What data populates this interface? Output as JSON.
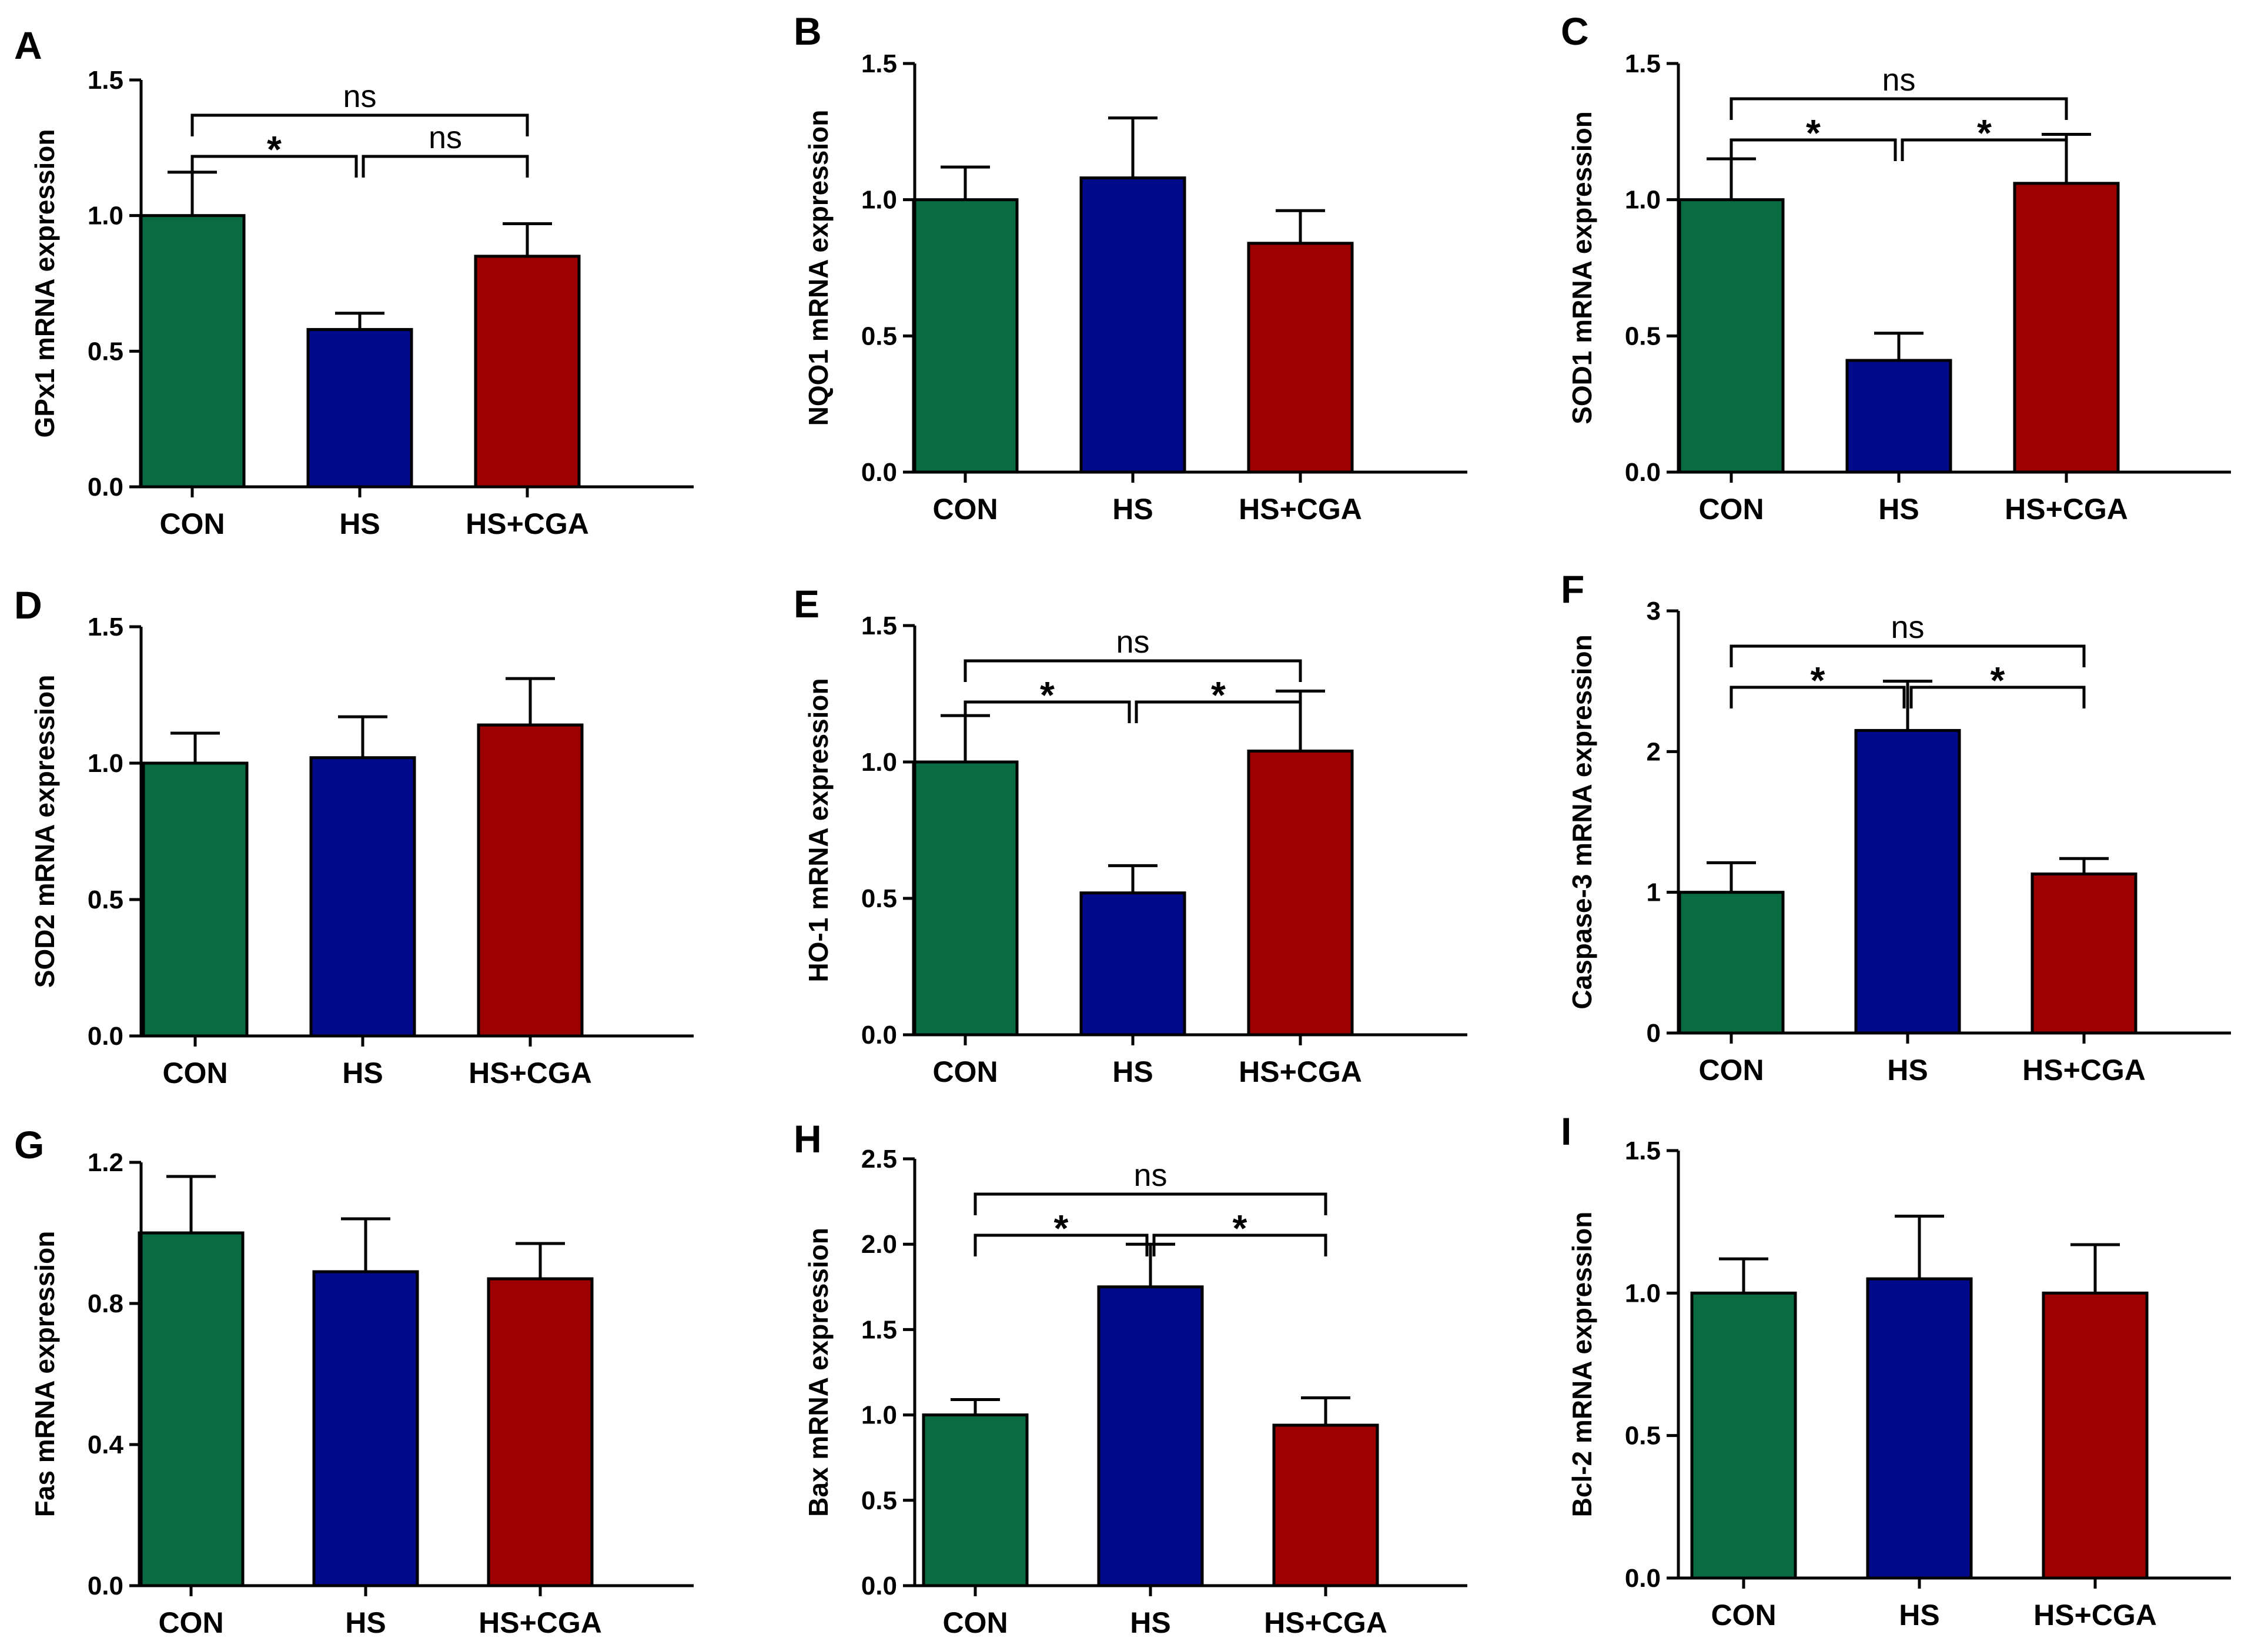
{
  "colors": {
    "CON": "#0a6b43",
    "HS": "#020a8c",
    "HS+CGA": "#9c0000"
  },
  "chart_data": [
    {
      "type": "bar",
      "panel": "A",
      "ylabel": "GPx1 mRNA expression",
      "categories": [
        "CON",
        "HS",
        "HS+CGA"
      ],
      "values": [
        1.0,
        0.58,
        0.85
      ],
      "errors": [
        0.16,
        0.06,
        0.12
      ],
      "ylim": [
        0,
        1.5
      ],
      "yticks": [
        "0.0",
        "0.5",
        "1.0",
        "1.5"
      ],
      "comparisons": [
        {
          "from": 0,
          "to": 1,
          "label": "*",
          "level": 1
        },
        {
          "from": 1,
          "to": 2,
          "label": "ns",
          "level": 1
        },
        {
          "from": 0,
          "to": 2,
          "label": "ns",
          "level": 2
        }
      ]
    },
    {
      "type": "bar",
      "panel": "B",
      "ylabel": "NQO1 mRNA expression",
      "categories": [
        "CON",
        "HS",
        "HS+CGA"
      ],
      "values": [
        1.0,
        1.08,
        0.84
      ],
      "errors": [
        0.12,
        0.22,
        0.12
      ],
      "ylim": [
        0,
        1.5
      ],
      "yticks": [
        "0.0",
        "0.5",
        "1.0",
        "1.5"
      ],
      "comparisons": []
    },
    {
      "type": "bar",
      "panel": "C",
      "ylabel": "SOD1 mRNA expression",
      "categories": [
        "CON",
        "HS",
        "HS+CGA"
      ],
      "values": [
        1.0,
        0.41,
        1.06
      ],
      "errors": [
        0.15,
        0.1,
        0.18
      ],
      "ylim": [
        0,
        1.5
      ],
      "yticks": [
        "0.0",
        "0.5",
        "1.0",
        "1.5"
      ],
      "comparisons": [
        {
          "from": 0,
          "to": 1,
          "label": "*",
          "level": 1
        },
        {
          "from": 1,
          "to": 2,
          "label": "*",
          "level": 1
        },
        {
          "from": 0,
          "to": 2,
          "label": "ns",
          "level": 2
        }
      ]
    },
    {
      "type": "bar",
      "panel": "D",
      "ylabel": "SOD2 mRNA expression",
      "categories": [
        "CON",
        "HS",
        "HS+CGA"
      ],
      "values": [
        1.0,
        1.02,
        1.14
      ],
      "errors": [
        0.11,
        0.15,
        0.17
      ],
      "ylim": [
        0,
        1.5
      ],
      "yticks": [
        "0.0",
        "0.5",
        "1.0",
        "1.5"
      ],
      "comparisons": []
    },
    {
      "type": "bar",
      "panel": "E",
      "ylabel": "HO-1 mRNA expression",
      "categories": [
        "CON",
        "HS",
        "HS+CGA"
      ],
      "values": [
        1.0,
        0.52,
        1.04
      ],
      "errors": [
        0.17,
        0.1,
        0.22
      ],
      "ylim": [
        0,
        1.5
      ],
      "yticks": [
        "0.0",
        "0.5",
        "1.0",
        "1.5"
      ],
      "comparisons": [
        {
          "from": 0,
          "to": 1,
          "label": "*",
          "level": 1
        },
        {
          "from": 1,
          "to": 2,
          "label": "*",
          "level": 1
        },
        {
          "from": 0,
          "to": 2,
          "label": "ns",
          "level": 2
        }
      ]
    },
    {
      "type": "bar",
      "panel": "F",
      "ylabel": "Caspase-3 mRNA expression",
      "categories": [
        "CON",
        "HS",
        "HS+CGA"
      ],
      "values": [
        1.0,
        2.15,
        1.13
      ],
      "errors": [
        0.21,
        0.35,
        0.11
      ],
      "ylim": [
        0,
        3
      ],
      "yticks": [
        "0",
        "1",
        "2",
        "3"
      ],
      "comparisons": [
        {
          "from": 0,
          "to": 1,
          "label": "*",
          "level": 1
        },
        {
          "from": 1,
          "to": 2,
          "label": "*",
          "level": 1
        },
        {
          "from": 0,
          "to": 2,
          "label": "ns",
          "level": 2
        }
      ]
    },
    {
      "type": "bar",
      "panel": "G",
      "ylabel": "Fas mRNA expression",
      "categories": [
        "CON",
        "HS",
        "HS+CGA"
      ],
      "values": [
        1.0,
        0.89,
        0.87
      ],
      "errors": [
        0.16,
        0.15,
        0.1
      ],
      "ylim": [
        0,
        1.2
      ],
      "yticks": [
        "0.0",
        "0.4",
        "0.8",
        "1.2"
      ],
      "comparisons": []
    },
    {
      "type": "bar",
      "panel": "H",
      "ylabel": "Bax mRNA expression",
      "categories": [
        "CON",
        "HS",
        "HS+CGA"
      ],
      "values": [
        1.0,
        1.75,
        0.94
      ],
      "errors": [
        0.09,
        0.25,
        0.16
      ],
      "ylim": [
        0,
        2.5
      ],
      "yticks": [
        "0.0",
        "0.5",
        "1.0",
        "1.5",
        "2.0",
        "2.5"
      ],
      "comparisons": [
        {
          "from": 0,
          "to": 1,
          "label": "*",
          "level": 1
        },
        {
          "from": 1,
          "to": 2,
          "label": "*",
          "level": 1
        },
        {
          "from": 0,
          "to": 2,
          "label": "ns",
          "level": 2
        }
      ]
    },
    {
      "type": "bar",
      "panel": "I",
      "ylabel": "Bcl-2 mRNA expression",
      "categories": [
        "CON",
        "HS",
        "HS+CGA"
      ],
      "values": [
        1.0,
        1.05,
        1.0
      ],
      "errors": [
        0.12,
        0.22,
        0.17
      ],
      "ylim": [
        0,
        1.5
      ],
      "yticks": [
        "0.0",
        "0.5",
        "1.0",
        "1.5"
      ],
      "comparisons": []
    }
  ]
}
